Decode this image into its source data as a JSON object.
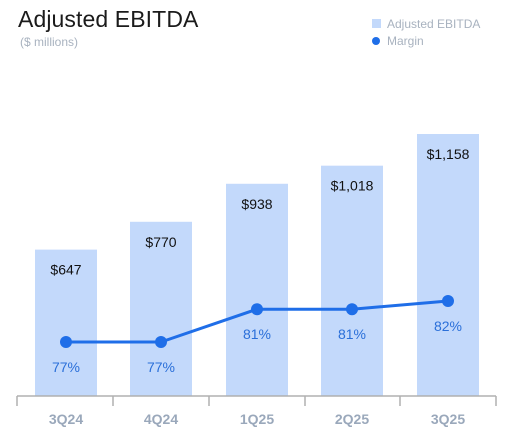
{
  "title": "Adjusted EBITDA",
  "subtitle": "($ millions)",
  "legend": {
    "bar_label": "Adjusted EBITDA",
    "line_label": "Margin"
  },
  "colors": {
    "bar": "#c3d9fb",
    "line": "#1f6ee8",
    "bar_label_text": "#111111",
    "line_label_text": "#2a6fd9",
    "axis": "#b0b0b0",
    "tick_label": "#9aa8bb"
  },
  "chart_data": {
    "type": "bar",
    "title": "Adjusted EBITDA",
    "subtitle": "($ millions)",
    "categories": [
      "3Q24",
      "4Q24",
      "1Q25",
      "2Q25",
      "3Q25"
    ],
    "series": [
      {
        "name": "Adjusted EBITDA",
        "type": "bar",
        "values": [
          647,
          770,
          938,
          1018,
          1158
        ],
        "labels": [
          "$647",
          "$770",
          "$938",
          "$1,018",
          "$1,158"
        ]
      },
      {
        "name": "Margin",
        "type": "line",
        "values": [
          77,
          77,
          81,
          81,
          82
        ],
        "labels": [
          "77%",
          "77%",
          "81%",
          "81%",
          "82%"
        ]
      }
    ],
    "xlabel": "",
    "ylabel": "",
    "legend_position": "top-right",
    "grid": false
  }
}
